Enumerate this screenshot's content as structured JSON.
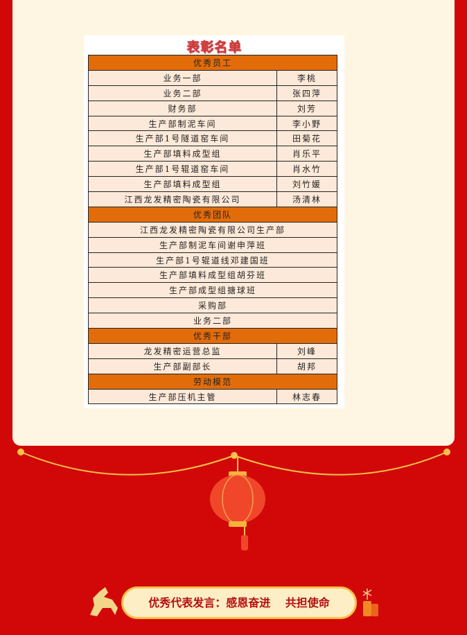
{
  "title": "表彰名单",
  "sections": [
    {
      "header": "优秀员工",
      "rows": [
        {
          "dept": "业务一部",
          "name": "李桃"
        },
        {
          "dept": "业务二部",
          "name": "张四萍"
        },
        {
          "dept": "财务部",
          "name": "刘芳"
        },
        {
          "dept": "生产部制泥车间",
          "name": "李小野"
        },
        {
          "dept": "生产部1号隧道窑车间",
          "name": "田菊花"
        },
        {
          "dept": "生产部填料成型组",
          "name": "肖乐平"
        },
        {
          "dept": "生产部1号辊道窑车间",
          "name": "肖水竹"
        },
        {
          "dept": "生产部填料成型组",
          "name": "刘竹媛"
        },
        {
          "dept": "江西龙发精密陶瓷有限公司",
          "name": "汤清林"
        }
      ]
    },
    {
      "header": "优秀团队",
      "rows": [
        {
          "dept": "江西龙发精密陶瓷有限公司生产部"
        },
        {
          "dept": "生产部制泥车间谢申萍班"
        },
        {
          "dept": "生产部1号辊道线邓建国班"
        },
        {
          "dept": "生产部填料成型组胡芬班"
        },
        {
          "dept": "生产部成型组搪球班"
        },
        {
          "dept": "采购部"
        },
        {
          "dept": "业务二部"
        }
      ]
    },
    {
      "header": "优秀干部",
      "rows": [
        {
          "dept": "龙发精密运营总监",
          "name": "刘峰"
        },
        {
          "dept": "生产部副部长",
          "name": "胡邦"
        }
      ]
    },
    {
      "header": "劳动模范",
      "rows": [
        {
          "dept": "生产部压机主管",
          "name": "林志春"
        }
      ]
    }
  ],
  "banner": "优秀代表发言：感恩奋进　 共担使命",
  "colors": {
    "background": "#d20808",
    "panel": "#fef6e2",
    "section_header": "#e36c0a",
    "row": "#fde9d9",
    "banner_text": "#b50f0f"
  },
  "icons": [
    "lantern-icon",
    "horse-icon",
    "firecracker-icon"
  ]
}
